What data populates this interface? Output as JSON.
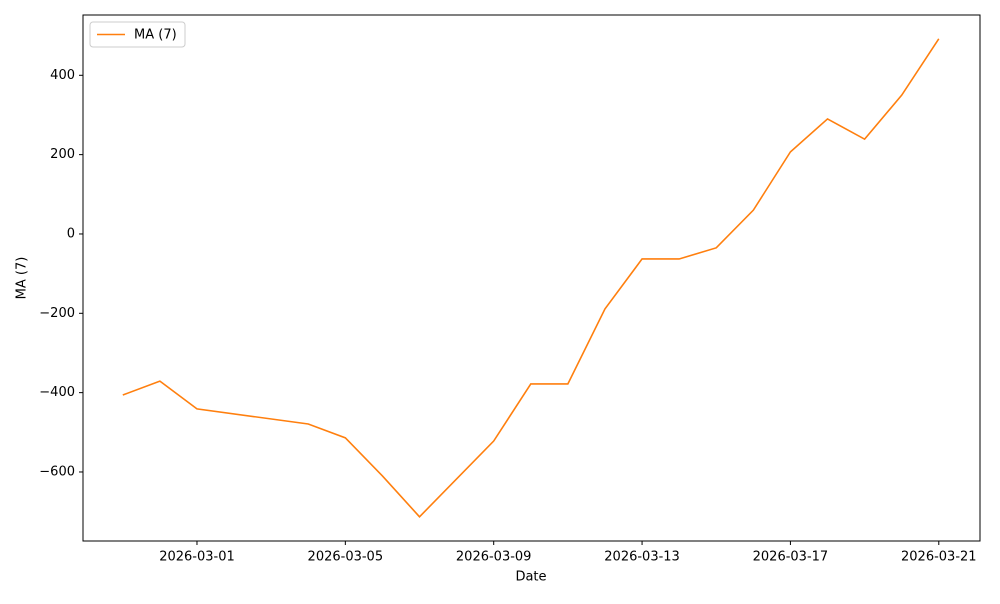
{
  "chart_data": {
    "type": "line",
    "x_label": "Date",
    "y_label": "MA (7)",
    "x": [
      "2026-02-27",
      "2026-02-28",
      "2026-03-01",
      "2026-03-04",
      "2026-03-05",
      "2026-03-06",
      "2026-03-07",
      "2026-03-09",
      "2026-03-10",
      "2026-03-11",
      "2026-03-12",
      "2026-03-13",
      "2026-03-14",
      "2026-03-15",
      "2026-03-16",
      "2026-03-17",
      "2026-03-18",
      "2026-03-19",
      "2026-03-20",
      "2026-03-21"
    ],
    "series": [
      {
        "name": "MA (7)",
        "color": "#ff7f0e",
        "values": [
          -406,
          -371,
          -441,
          -479,
          -514,
          -610,
          -713,
          -522,
          -378,
          -378,
          -189,
          -63,
          -63,
          -35,
          60,
          207,
          290,
          239,
          350,
          492
        ]
      }
    ],
    "xlim": [
      "2026-02-25T22:15",
      "2026-03-22T02:40"
    ],
    "xticks": [
      "2026-03-01",
      "2026-03-05",
      "2026-03-09",
      "2026-03-13",
      "2026-03-17",
      "2026-03-21"
    ],
    "ylim": [
      -774,
      552
    ],
    "yticks": [
      {
        "value": -600,
        "label": "−600"
      },
      {
        "value": -400,
        "label": "−400"
      },
      {
        "value": -200,
        "label": "−200"
      },
      0,
      200,
      400
    ],
    "legend": "upper left"
  }
}
